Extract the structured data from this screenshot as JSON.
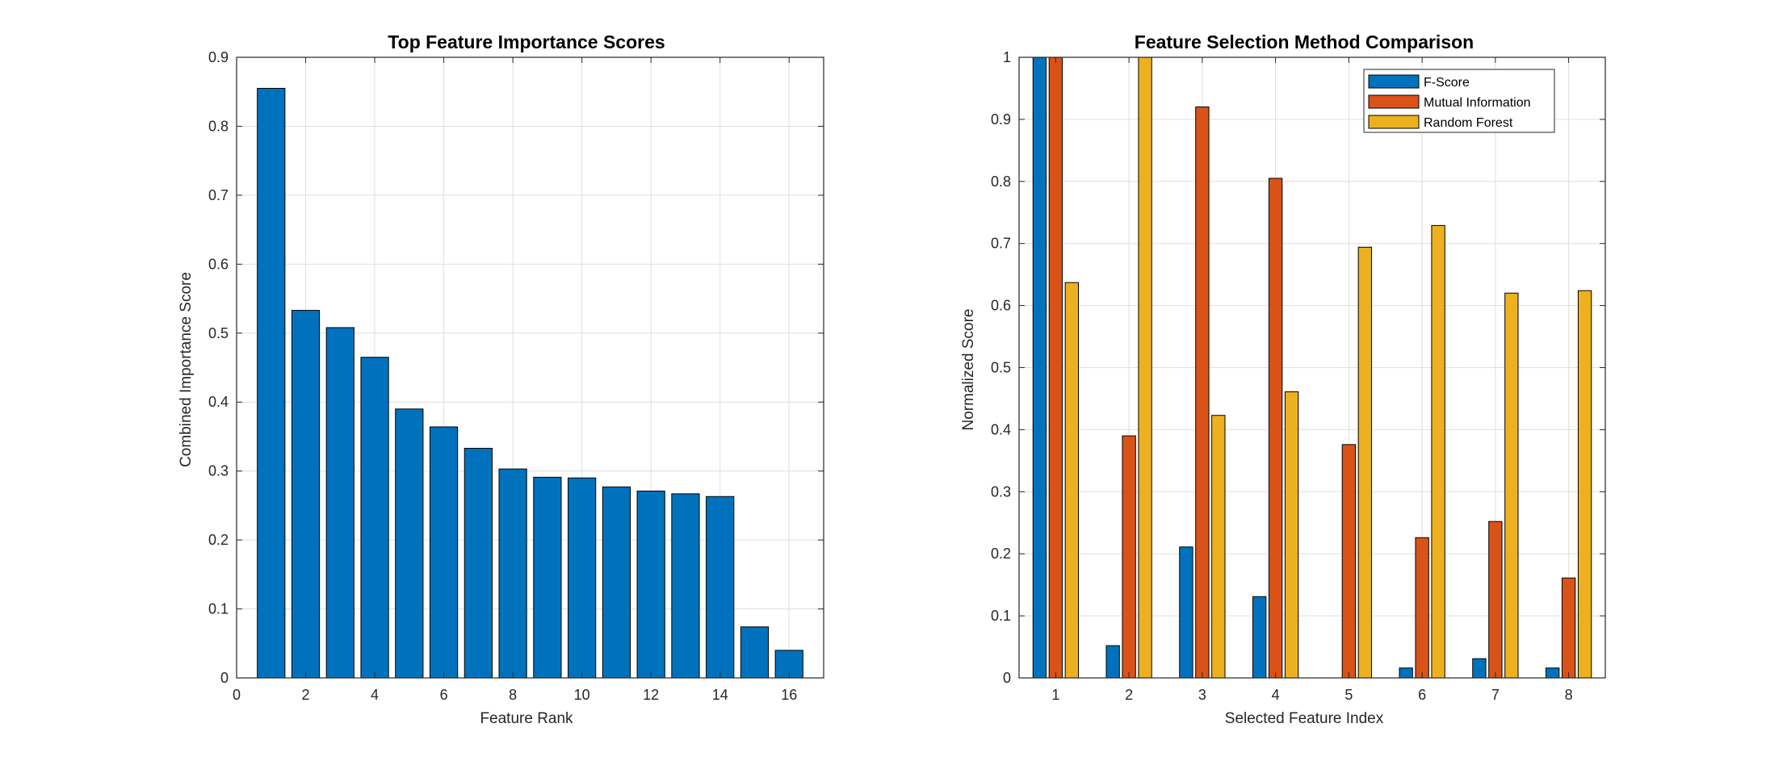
{
  "chart_data": [
    {
      "type": "bar",
      "title": "Top Feature Importance Scores",
      "xlabel": "Feature Rank",
      "ylabel": "Combined Importance Score",
      "x": [
        1,
        2,
        3,
        4,
        5,
        6,
        7,
        8,
        9,
        10,
        11,
        12,
        13,
        14,
        15,
        16
      ],
      "values": [
        0.855,
        0.533,
        0.508,
        0.465,
        0.39,
        0.364,
        0.333,
        0.303,
        0.291,
        0.29,
        0.277,
        0.271,
        0.267,
        0.263,
        0.074,
        0.04
      ],
      "xlim": [
        0,
        17
      ],
      "ylim": [
        0,
        0.9
      ],
      "xticks": [
        "0",
        "2",
        "4",
        "6",
        "8",
        "10",
        "12",
        "14",
        "16"
      ],
      "yticks": [
        "0",
        "0.1",
        "0.2",
        "0.3",
        "0.4",
        "0.5",
        "0.6",
        "0.7",
        "0.8",
        "0.9"
      ],
      "grid": true,
      "color": "#0072BD"
    },
    {
      "type": "bar",
      "title": "Feature Selection Method Comparison",
      "xlabel": "Selected Feature Index",
      "ylabel": "Normalized Score",
      "categories": [
        "1",
        "2",
        "3",
        "4",
        "5",
        "6",
        "7",
        "8"
      ],
      "series": [
        {
          "name": "F-Score",
          "color": "#0072BD",
          "values": [
            1.0,
            0.052,
            0.211,
            0.131,
            0.0,
            0.016,
            0.031,
            0.016
          ]
        },
        {
          "name": "Mutual Information",
          "color": "#D95319",
          "values": [
            1.0,
            0.39,
            0.92,
            0.805,
            0.376,
            0.226,
            0.252,
            0.161
          ]
        },
        {
          "name": "Random Forest",
          "color": "#EDB120",
          "values": [
            0.637,
            1.0,
            0.423,
            0.461,
            0.694,
            0.729,
            0.62,
            0.624
          ]
        }
      ],
      "ylim": [
        0,
        1
      ],
      "yticks": [
        "0",
        "0.1",
        "0.2",
        "0.3",
        "0.4",
        "0.5",
        "0.6",
        "0.7",
        "0.8",
        "0.9",
        "1"
      ],
      "grid": true,
      "legend": "top-right"
    }
  ]
}
